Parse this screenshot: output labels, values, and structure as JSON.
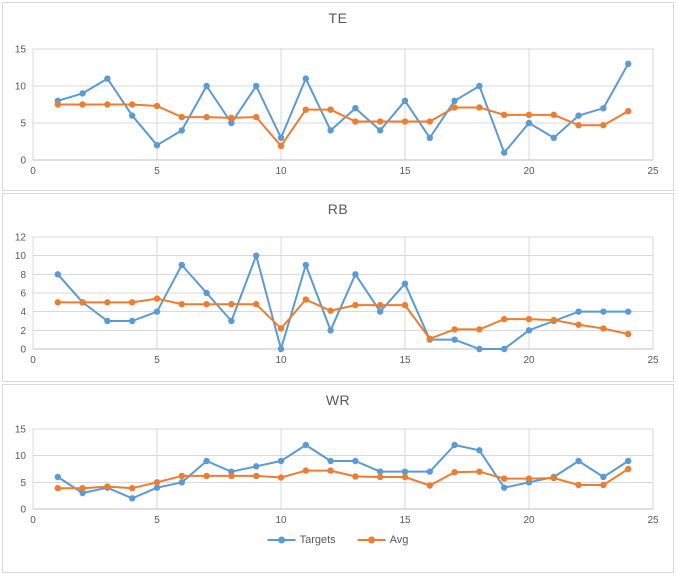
{
  "colors": {
    "targets": "#5B9BD5",
    "avg": "#ED7D31",
    "gridline": "#D9D9D9",
    "axis_line": "#BFBFBF",
    "plot_border": "#D9D9D9",
    "text": "#595959",
    "panel_border": "#D9D9D9",
    "background": "#FFFFFF"
  },
  "chart_data": [
    {
      "type": "line",
      "title": "TE",
      "x": [
        1,
        2,
        3,
        4,
        5,
        6,
        7,
        8,
        9,
        10,
        11,
        12,
        13,
        14,
        15,
        16,
        17,
        18,
        19,
        20,
        21,
        22,
        23,
        24
      ],
      "xlim": [
        0,
        25
      ],
      "ylim": [
        0,
        15
      ],
      "xticks": [
        0,
        5,
        10,
        15,
        20,
        25
      ],
      "yticks": [
        0,
        5,
        10,
        15
      ],
      "grid": true,
      "legend": false,
      "series": [
        {
          "name": "Targets",
          "color": "#5B9BD5",
          "values": [
            8,
            9,
            11,
            6,
            2,
            4,
            10,
            5,
            10,
            3,
            11,
            4,
            7,
            4,
            8,
            3,
            8,
            10,
            1,
            5,
            3,
            6,
            7,
            13
          ]
        },
        {
          "name": "Avg",
          "color": "#ED7D31",
          "values": [
            7.5,
            7.5,
            7.5,
            7.5,
            7.3,
            5.8,
            5.8,
            5.7,
            5.8,
            1.9,
            6.8,
            6.8,
            5.2,
            5.2,
            5.2,
            5.2,
            7.1,
            7.1,
            6.1,
            6.1,
            6.1,
            4.7,
            4.7,
            6.6
          ]
        }
      ]
    },
    {
      "type": "line",
      "title": "RB",
      "x": [
        1,
        2,
        3,
        4,
        5,
        6,
        7,
        8,
        9,
        10,
        11,
        12,
        13,
        14,
        15,
        16,
        17,
        18,
        19,
        20,
        21,
        22,
        23,
        24
      ],
      "xlim": [
        0,
        25
      ],
      "ylim": [
        0,
        12
      ],
      "xticks": [
        0,
        5,
        10,
        15,
        20,
        25
      ],
      "yticks": [
        0,
        2,
        4,
        6,
        8,
        10,
        12
      ],
      "grid": true,
      "legend": false,
      "series": [
        {
          "name": "Targets",
          "color": "#5B9BD5",
          "values": [
            8,
            5,
            3,
            3,
            4,
            9,
            6,
            3,
            10,
            0,
            9,
            2,
            8,
            4,
            7,
            1,
            1,
            0,
            0,
            2,
            3,
            4,
            4,
            4
          ]
        },
        {
          "name": "Avg",
          "color": "#ED7D31",
          "values": [
            5.0,
            5.0,
            5.0,
            5.0,
            5.4,
            4.8,
            4.8,
            4.8,
            4.8,
            2.2,
            5.3,
            4.1,
            4.7,
            4.7,
            4.7,
            1.1,
            2.1,
            2.1,
            3.2,
            3.2,
            3.1,
            2.6,
            2.2,
            1.6
          ]
        }
      ]
    },
    {
      "type": "line",
      "title": "WR",
      "x": [
        1,
        2,
        3,
        4,
        5,
        6,
        7,
        8,
        9,
        10,
        11,
        12,
        13,
        14,
        15,
        16,
        17,
        18,
        19,
        20,
        21,
        22,
        23,
        24
      ],
      "xlim": [
        0,
        25
      ],
      "ylim": [
        0,
        15
      ],
      "xticks": [
        0,
        5,
        10,
        15,
        20,
        25
      ],
      "yticks": [
        0,
        5,
        10,
        15
      ],
      "grid": true,
      "legend": true,
      "legend_position": "bottom",
      "series": [
        {
          "name": "Targets",
          "color": "#5B9BD5",
          "values": [
            6,
            3,
            4,
            2,
            4,
            5,
            9,
            7,
            8,
            9,
            12,
            9,
            9,
            7,
            7,
            7,
            12,
            11,
            4,
            5,
            6,
            9,
            6,
            9
          ]
        },
        {
          "name": "Avg",
          "color": "#ED7D31",
          "values": [
            3.9,
            3.9,
            4.2,
            3.9,
            5.0,
            6.2,
            6.2,
            6.2,
            6.2,
            5.9,
            7.2,
            7.2,
            6.1,
            6.0,
            6.0,
            4.4,
            6.9,
            7.0,
            5.7,
            5.7,
            5.8,
            4.5,
            4.5,
            7.5
          ]
        }
      ]
    }
  ]
}
